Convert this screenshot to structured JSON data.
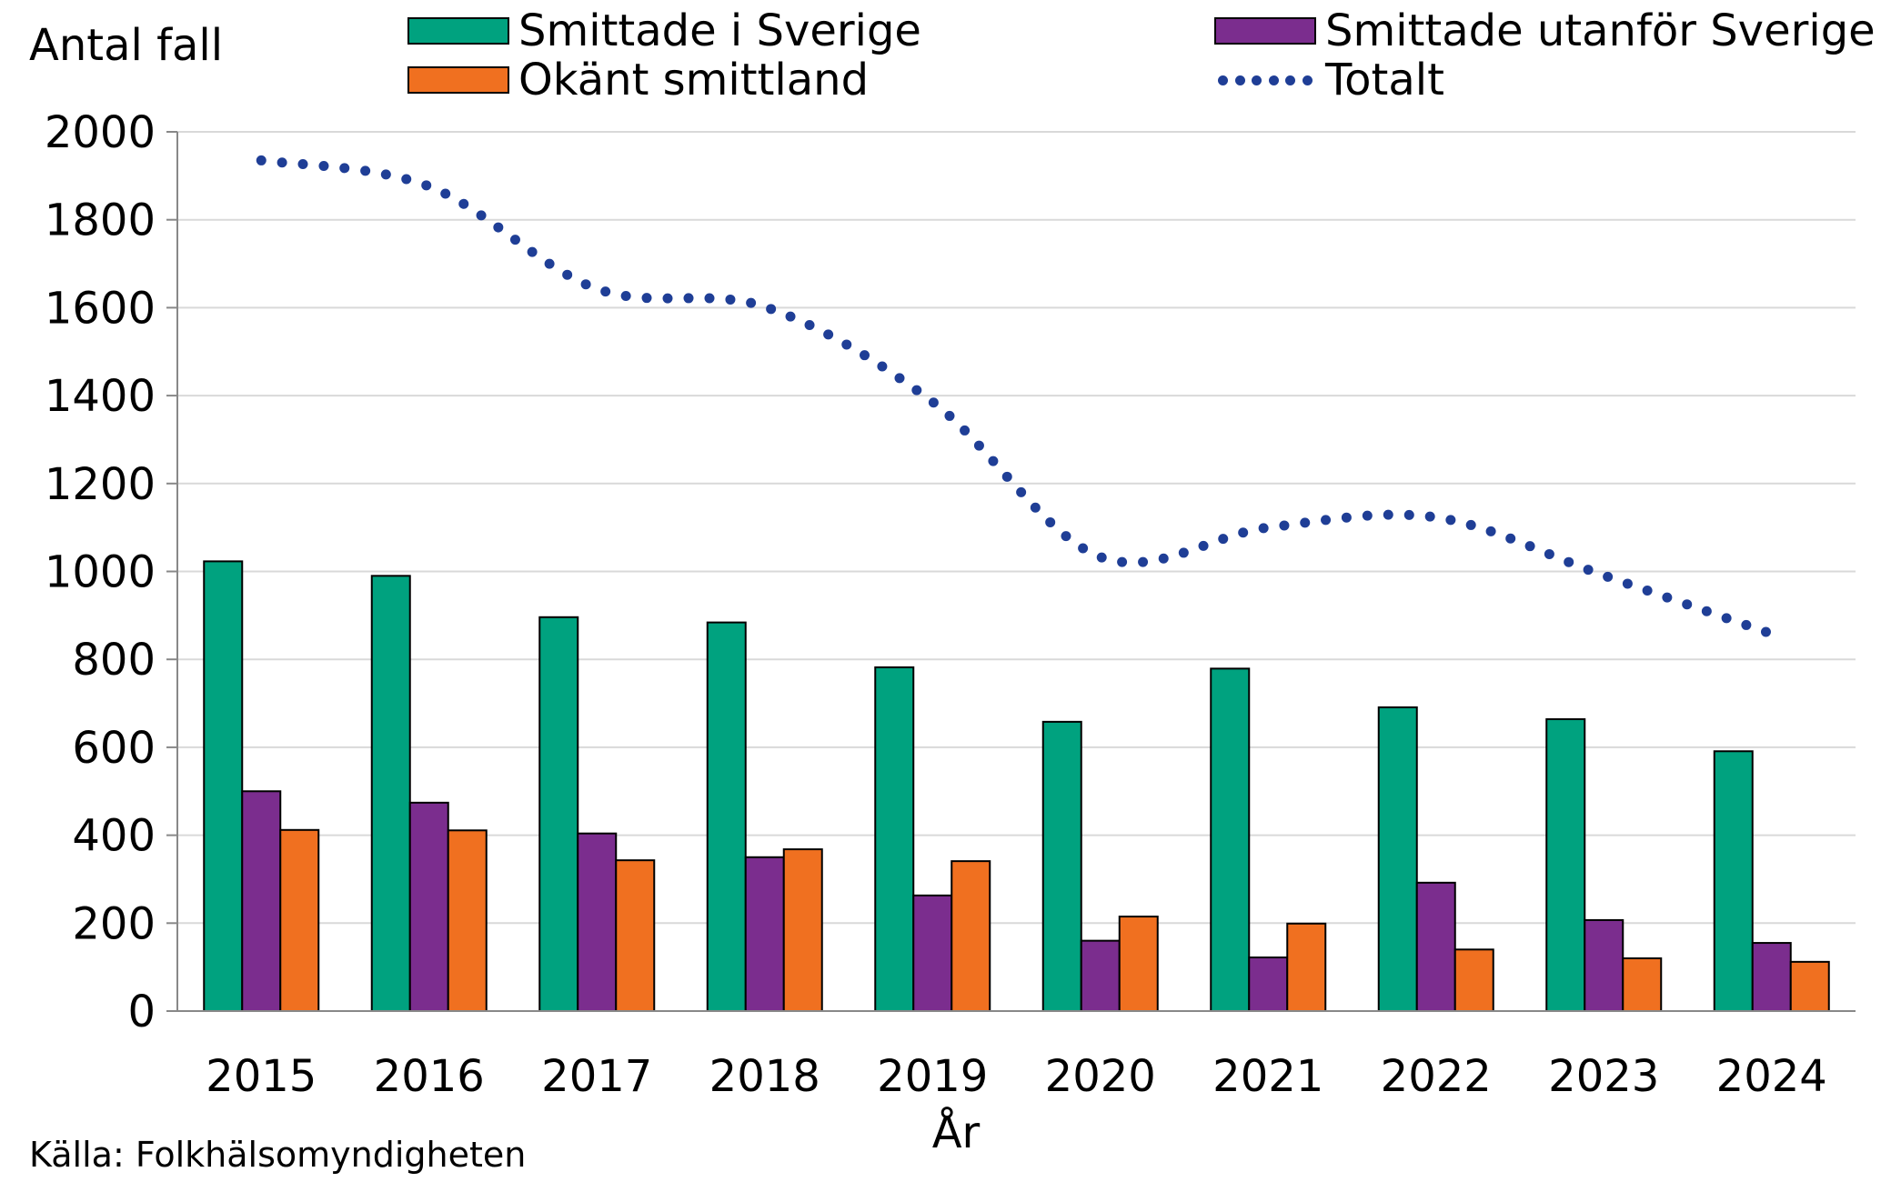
{
  "chart_data": {
    "type": "bar",
    "title": "",
    "ylabel": "Antal fall",
    "xlabel": "År",
    "source": "Källa: Folkhälsomyndigheten",
    "ylim": [
      0,
      2000
    ],
    "yticks": [
      0,
      200,
      400,
      600,
      800,
      1000,
      1200,
      1400,
      1600,
      1800,
      2000
    ],
    "grid": true,
    "legend_position": "top",
    "categories": [
      "2015",
      "2016",
      "2017",
      "2018",
      "2019",
      "2020",
      "2021",
      "2022",
      "2023",
      "2024"
    ],
    "series": [
      {
        "name": "Smittade i Sverige",
        "type": "bar",
        "color": "#00A27F",
        "values": [
          1023,
          990,
          896,
          884,
          782,
          658,
          779,
          691,
          664,
          591
        ]
      },
      {
        "name": "Smittade utanför Sverige",
        "type": "bar",
        "color": "#7B2D8E",
        "values": [
          500,
          474,
          404,
          350,
          263,
          160,
          122,
          292,
          207,
          155
        ]
      },
      {
        "name": "Okänt smittland",
        "type": "bar",
        "color": "#F07020",
        "values": [
          412,
          411,
          343,
          368,
          341,
          215,
          199,
          140,
          120,
          112
        ]
      },
      {
        "name": "Totalt",
        "type": "line",
        "style": "dotted",
        "color": "#1F3E96",
        "values": [
          1935,
          1876,
          1643,
          1602,
          1386,
          1033,
          1100,
          1123,
          991,
          858
        ]
      }
    ]
  }
}
